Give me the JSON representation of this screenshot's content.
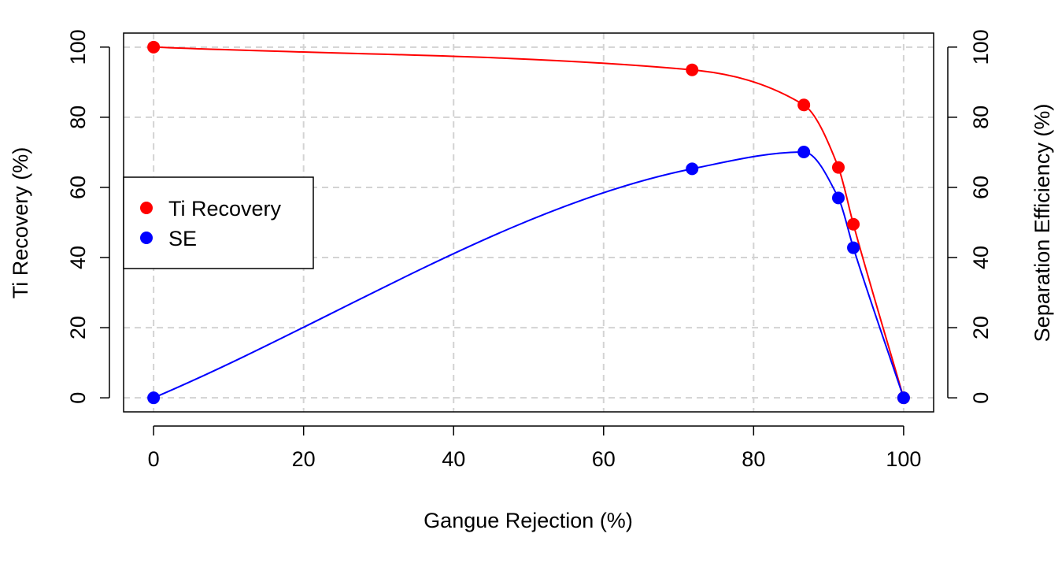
{
  "chart_data": {
    "type": "line",
    "xlabel": "Gangue Rejection (%)",
    "ylabel_left": "Ti Recovery (%)",
    "ylabel_right": "Separation Efficiency (%)",
    "xlim": [
      -4,
      104
    ],
    "ylim": [
      -4,
      104
    ],
    "x_ticks": [
      0,
      20,
      40,
      60,
      80,
      100
    ],
    "y_ticks": [
      0,
      20,
      40,
      60,
      80,
      100
    ],
    "grid": true,
    "grid_style": "dashed",
    "legend_position": "left",
    "series": [
      {
        "name": "Ti Recovery",
        "color": "#ff0000",
        "axis": "left",
        "x": [
          0,
          71.8,
          86.7,
          91.3,
          93.3,
          100
        ],
        "y": [
          100,
          93.5,
          83.5,
          65.7,
          49.5,
          0
        ]
      },
      {
        "name": "SE",
        "color": "#0000ff",
        "axis": "right",
        "x": [
          0,
          71.8,
          86.7,
          91.3,
          93.3,
          100
        ],
        "y": [
          0,
          65.3,
          70.1,
          57.0,
          42.8,
          0
        ]
      }
    ]
  }
}
